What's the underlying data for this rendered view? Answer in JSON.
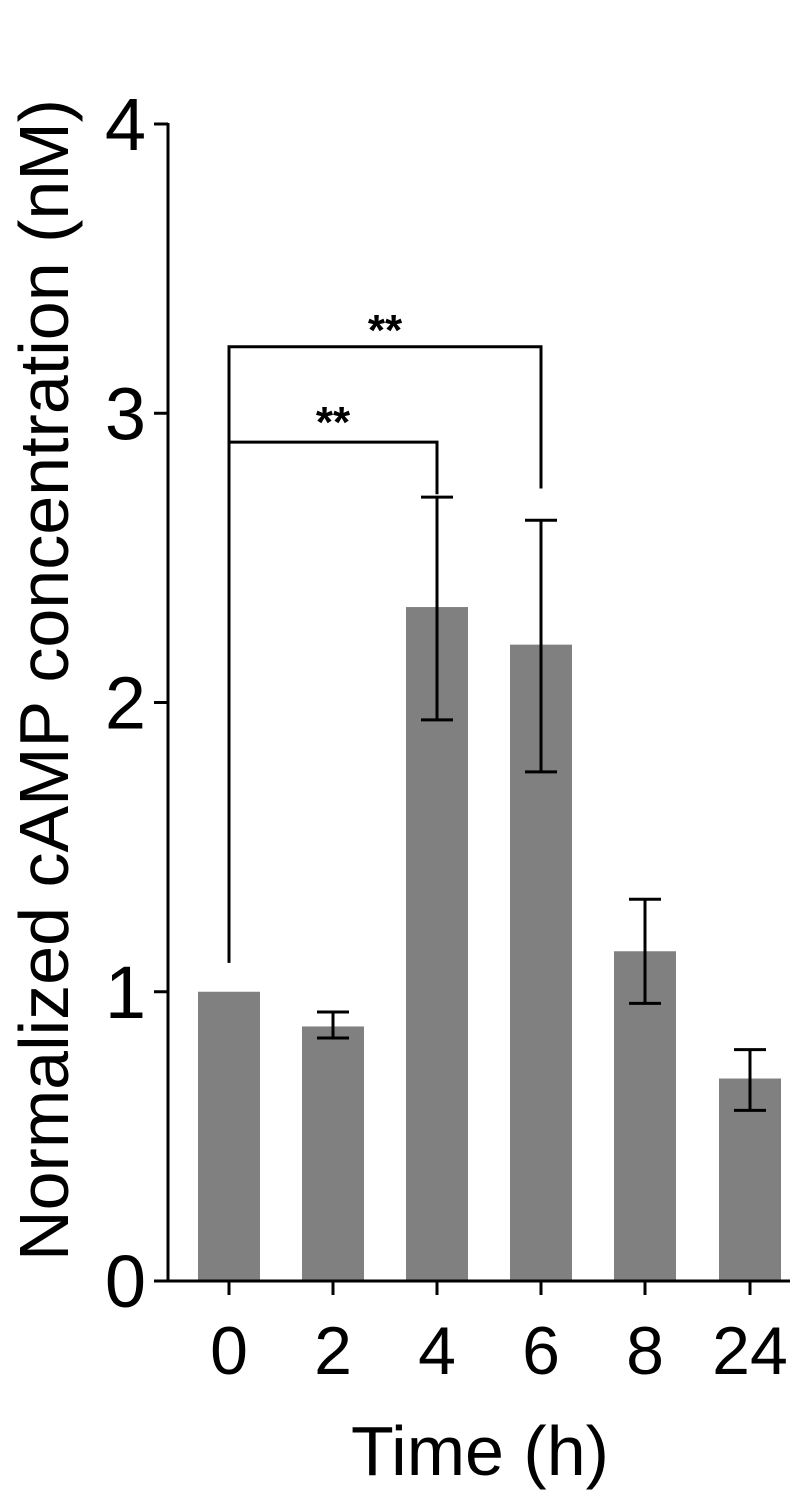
{
  "chart_data": {
    "type": "bar",
    "title": "",
    "xlabel": "Time (h)",
    "ylabel": "Normalized cAMP concentration (nM)",
    "categories": [
      "0",
      "2",
      "4",
      "6",
      "8",
      "24"
    ],
    "values": [
      1.0,
      0.88,
      2.33,
      2.2,
      1.14,
      0.7
    ],
    "errors": [
      {
        "low": null,
        "high": null
      },
      {
        "low": 0.84,
        "high": 0.93
      },
      {
        "low": 1.94,
        "high": 2.71
      },
      {
        "low": 1.76,
        "high": 2.63
      },
      {
        "low": 0.96,
        "high": 1.32
      },
      {
        "low": 0.59,
        "high": 0.8
      }
    ],
    "ylim": [
      0,
      4
    ],
    "yticks": [
      "0",
      "1",
      "2",
      "3",
      "4"
    ],
    "bar_color": "#808080",
    "grid": false,
    "significance": [
      {
        "from": "0",
        "to": "4",
        "label": "**"
      },
      {
        "from": "0",
        "to": "6",
        "label": "**"
      }
    ]
  }
}
